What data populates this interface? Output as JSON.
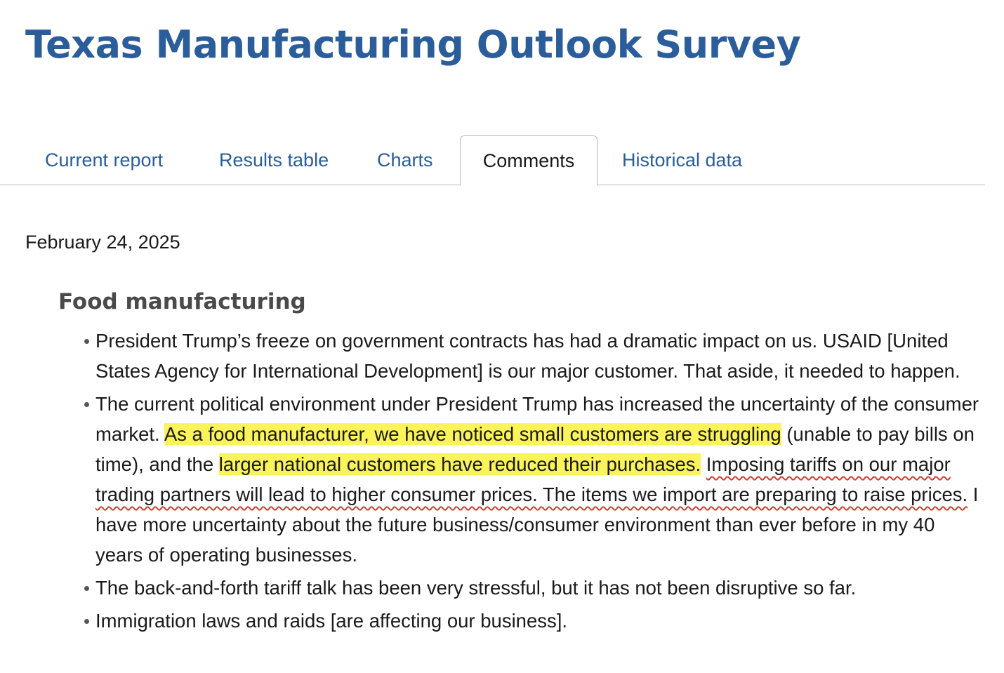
{
  "header": {
    "title": "Texas Manufacturing Outlook Survey"
  },
  "tabs": [
    {
      "label": "Current report",
      "active": false
    },
    {
      "label": "Results table",
      "active": false
    },
    {
      "label": "Charts",
      "active": false
    },
    {
      "label": "Comments",
      "active": true
    },
    {
      "label": "Historical data",
      "active": false
    }
  ],
  "report": {
    "date": "February 24, 2025",
    "section_heading": "Food manufacturing",
    "comments": [
      {
        "text": "President Trump’s freeze on government contracts has had a dramatic impact on us. USAID [United States Agency for International Development] is our major customer. That aside, it needed to happen."
      },
      {
        "part1": "The current political environment under President Trump has increased the uncertainty of the consumer market. ",
        "highlight1": "As a food manufacturer, we have noticed small customers are struggling",
        "part2": " (unable to pay bills on time), and the ",
        "highlight2": "larger national customers have reduced their purchases.",
        "part3": " ",
        "underline": "Imposing tariffs on our major trading partners will lead to higher consumer prices. The items we import are preparing to raise prices.",
        "part4": " I have more uncertainty about the future business/consumer environment than ever before in my 40 years of operating businesses."
      },
      {
        "text": "The back-and-forth tariff talk has been very stressful, but it has not been disruptive so far."
      },
      {
        "text": "Immigration laws and raids [are affecting our business]."
      }
    ]
  },
  "colors": {
    "title_blue": "#2a5d9a",
    "highlight_yellow": "#fbf35a",
    "underline_red": "#d93a2b",
    "heading_gray": "#4a4a4a"
  }
}
